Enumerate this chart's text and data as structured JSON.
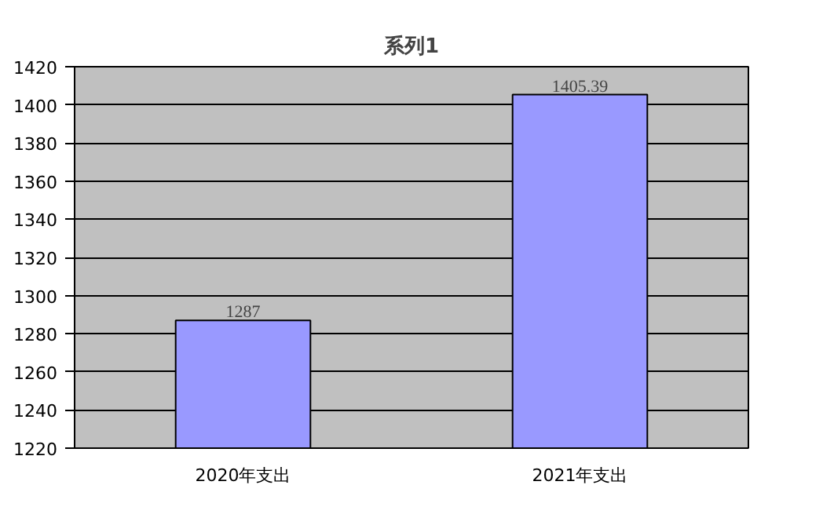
{
  "chart_data": {
    "type": "bar",
    "title": "系列1",
    "categories": [
      "2020年支出",
      "2021年支出"
    ],
    "values": [
      1287,
      1405.39
    ],
    "color": "#9999ff",
    "ylim": [
      1220,
      1420
    ],
    "yticks": [
      1220,
      1240,
      1260,
      1280,
      1300,
      1320,
      1340,
      1360,
      1380,
      1400,
      1420
    ],
    "grid": "y",
    "data_labels": true
  }
}
